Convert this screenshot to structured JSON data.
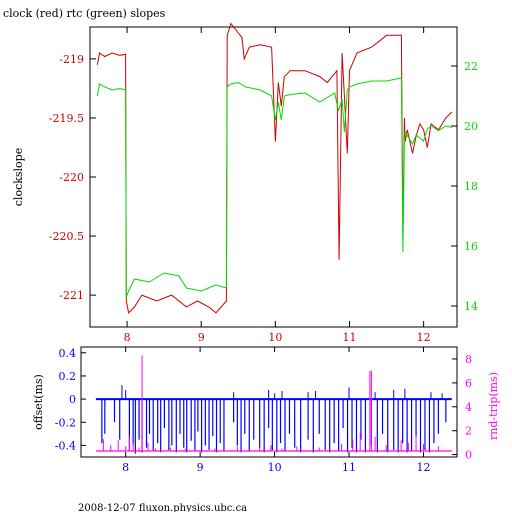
{
  "title": "clock (red) rtc (green) slopes",
  "footer": "2008-12-07 fluxon.physics.ubc.ca",
  "colors": {
    "red": "#cc0000",
    "green": "#00dd00",
    "blue": "#0000ff",
    "magenta": "#ff00ff",
    "axis": "#000000"
  },
  "chart_data": [
    {
      "type": "line",
      "ylabel": "clockslope",
      "xlim": [
        7.5,
        12.45
      ],
      "ylim_left": [
        -221.27,
        -218.73
      ],
      "ylim_right": [
        13.3,
        23.3
      ],
      "x_ticks": [
        "8",
        "9",
        "10",
        "11",
        "12"
      ],
      "y_ticks_left": [
        "-219",
        "-219.5",
        "-220",
        "-220.5",
        "-221"
      ],
      "y_ticks_right": [
        "22",
        "20",
        "18",
        "16",
        "14"
      ],
      "grid": false,
      "series": [
        {
          "name": "clock",
          "color": "red",
          "axis": "left",
          "x": [
            7.6,
            7.63,
            7.7,
            7.8,
            7.9,
            7.98,
            7.99,
            8.02,
            8.1,
            8.2,
            8.4,
            8.6,
            8.8,
            8.95,
            9.1,
            9.2,
            9.34,
            9.35,
            9.4,
            9.5,
            9.55,
            9.58,
            9.65,
            9.8,
            9.95,
            10.0,
            10.04,
            10.08,
            10.12,
            10.2,
            10.4,
            10.6,
            10.7,
            10.83,
            10.86,
            10.9,
            10.93,
            10.97,
            11.0,
            11.1,
            11.3,
            11.5,
            11.7,
            11.72,
            11.74,
            11.75,
            11.78,
            11.85,
            11.9,
            11.95,
            12.0,
            12.05,
            12.1,
            12.2,
            12.3,
            12.38
          ],
          "y": [
            -219.05,
            -218.95,
            -218.98,
            -218.95,
            -218.97,
            -218.96,
            -221.05,
            -221.15,
            -221.1,
            -221.0,
            -221.05,
            -221.0,
            -221.1,
            -221.05,
            -221.1,
            -221.15,
            -221.05,
            -218.8,
            -218.7,
            -218.78,
            -218.82,
            -219.0,
            -218.9,
            -218.88,
            -218.9,
            -219.7,
            -219.2,
            -219.4,
            -219.15,
            -219.1,
            -219.1,
            -219.15,
            -219.2,
            -219.1,
            -220.7,
            -218.95,
            -219.3,
            -219.8,
            -219.1,
            -218.95,
            -218.9,
            -218.8,
            -218.8,
            -220.5,
            -219.5,
            -219.7,
            -219.6,
            -219.8,
            -219.65,
            -219.55,
            -219.6,
            -219.75,
            -219.55,
            -219.6,
            -219.5,
            -219.45
          ]
        },
        {
          "name": "rtc",
          "color": "green",
          "axis": "right",
          "x": [
            7.6,
            7.63,
            7.7,
            7.8,
            7.9,
            7.98,
            7.99,
            8.02,
            8.1,
            8.3,
            8.5,
            8.7,
            8.8,
            9.0,
            9.1,
            9.2,
            9.34,
            9.35,
            9.4,
            9.5,
            9.6,
            9.8,
            9.95,
            10.0,
            10.04,
            10.08,
            10.12,
            10.2,
            10.4,
            10.6,
            10.8,
            10.85,
            10.9,
            10.93,
            10.97,
            11.0,
            11.1,
            11.3,
            11.5,
            11.7,
            11.72,
            11.74,
            11.75,
            11.8,
            11.85,
            11.9,
            11.95,
            12.0,
            12.05,
            12.1,
            12.2,
            12.3,
            12.38
          ],
          "y": [
            21.0,
            21.4,
            21.3,
            21.2,
            21.25,
            21.2,
            14.3,
            14.5,
            14.9,
            14.8,
            15.1,
            15.0,
            14.6,
            14.5,
            14.6,
            14.7,
            14.6,
            21.3,
            21.4,
            21.45,
            21.3,
            21.2,
            21.0,
            20.2,
            20.8,
            20.2,
            21.0,
            21.05,
            21.1,
            20.8,
            21.1,
            20.5,
            20.9,
            19.8,
            21.2,
            21.3,
            21.4,
            21.5,
            21.5,
            21.6,
            15.8,
            19.5,
            19.8,
            19.6,
            19.4,
            19.7,
            19.6,
            19.5,
            19.9,
            20.0,
            19.85,
            20.0,
            19.95
          ]
        }
      ]
    },
    {
      "type": "line",
      "ylabel_left": "offset(ms)",
      "ylabel_right": "rnd-trip(ms)",
      "xlim": [
        7.4,
        12.45
      ],
      "ylim_left": [
        -0.5,
        0.45
      ],
      "ylim_right": [
        -0.2,
        9
      ],
      "x_ticks": [
        "8",
        "9",
        "10",
        "11",
        "12"
      ],
      "y_ticks_left": [
        "0.4",
        "0.2",
        "0",
        "-0.2",
        "-0.4"
      ],
      "y_ticks_right": [
        "8",
        "6",
        "4",
        "2",
        "0"
      ],
      "grid": false,
      "series": [
        {
          "name": "offset",
          "color": "blue",
          "axis": "left",
          "baseline": 0.0,
          "drops_x": [
            7.68,
            7.72,
            7.85,
            7.92,
            8.05,
            8.1,
            8.13,
            8.18,
            8.22,
            8.28,
            8.32,
            8.37,
            8.43,
            8.47,
            8.52,
            8.58,
            8.62,
            8.68,
            8.73,
            8.78,
            8.82,
            8.88,
            8.93,
            8.97,
            9.02,
            9.07,
            9.12,
            9.17,
            9.22,
            9.27,
            9.32,
            9.45,
            9.5,
            9.55,
            9.6,
            9.66,
            9.72,
            9.8,
            9.86,
            9.92,
            9.97,
            10.03,
            10.08,
            10.14,
            10.2,
            10.27,
            10.35,
            10.45,
            10.52,
            10.6,
            10.68,
            10.74,
            10.8,
            10.86,
            10.92,
            10.98,
            11.04,
            11.1,
            11.16,
            11.22,
            11.3,
            11.38,
            11.45,
            11.52,
            11.6,
            11.66,
            11.72,
            11.78,
            11.84,
            11.9,
            11.96,
            12.02,
            12.08,
            12.14,
            12.2,
            12.3
          ],
          "drops_y": [
            -0.38,
            -0.3,
            -0.2,
            -0.35,
            -0.45,
            -0.4,
            -0.47,
            -0.35,
            -0.46,
            -0.42,
            -0.3,
            -0.45,
            -0.38,
            -0.46,
            -0.25,
            -0.44,
            -0.4,
            -0.46,
            -0.3,
            -0.42,
            -0.46,
            -0.36,
            -0.45,
            -0.28,
            -0.46,
            -0.4,
            -0.44,
            -0.32,
            -0.46,
            -0.38,
            -0.45,
            -0.2,
            -0.4,
            -0.46,
            -0.3,
            -0.45,
            -0.35,
            -0.42,
            -0.46,
            -0.25,
            -0.44,
            -0.46,
            -0.38,
            -0.45,
            -0.3,
            -0.42,
            -0.46,
            -0.35,
            -0.46,
            -0.3,
            -0.44,
            -0.46,
            -0.38,
            -0.45,
            -0.25,
            -0.46,
            -0.42,
            -0.46,
            -0.35,
            -0.46,
            -0.4,
            -0.46,
            -0.3,
            -0.46,
            -0.44,
            -0.46,
            -0.38,
            -0.46,
            -0.45,
            -0.32,
            -0.46,
            -0.44,
            -0.46,
            -0.38,
            -0.3,
            -0.2
          ],
          "spikes_x": [
            7.95,
            8.0,
            9.45,
            9.92,
            10.0,
            10.1,
            10.45,
            10.55,
            11.0,
            11.35,
            11.6,
            11.75,
            12.1,
            12.25
          ],
          "spikes_y": [
            0.12,
            0.08,
            0.06,
            0.08,
            0.05,
            0.07,
            0.06,
            0.07,
            0.1,
            0.06,
            0.08,
            0.09,
            0.06,
            0.05
          ]
        },
        {
          "name": "rnd-trip",
          "color": "magenta",
          "axis": "right",
          "baseline": 0.3,
          "x": [
            7.7,
            7.8,
            7.9,
            8.0,
            8.05,
            8.1,
            8.18,
            8.22,
            8.3,
            8.4,
            8.6,
            8.8,
            9.0,
            9.2,
            9.5,
            9.8,
            9.95,
            10.1,
            10.3,
            10.6,
            10.9,
            11.05,
            11.15,
            11.28,
            11.3,
            11.35,
            11.5,
            11.7,
            11.8,
            11.9,
            12.0,
            12.2
          ],
          "y": [
            1.3,
            0.8,
            1.2,
            0.7,
            1.5,
            1.0,
            0.6,
            8.3,
            1.0,
            0.5,
            0.6,
            0.5,
            0.4,
            0.5,
            0.7,
            0.6,
            0.8,
            0.5,
            0.7,
            0.6,
            0.9,
            1.2,
            1.8,
            7.0,
            7.0,
            1.5,
            0.8,
            1.2,
            1.0,
            1.6,
            0.9,
            0.7
          ]
        }
      ]
    }
  ]
}
